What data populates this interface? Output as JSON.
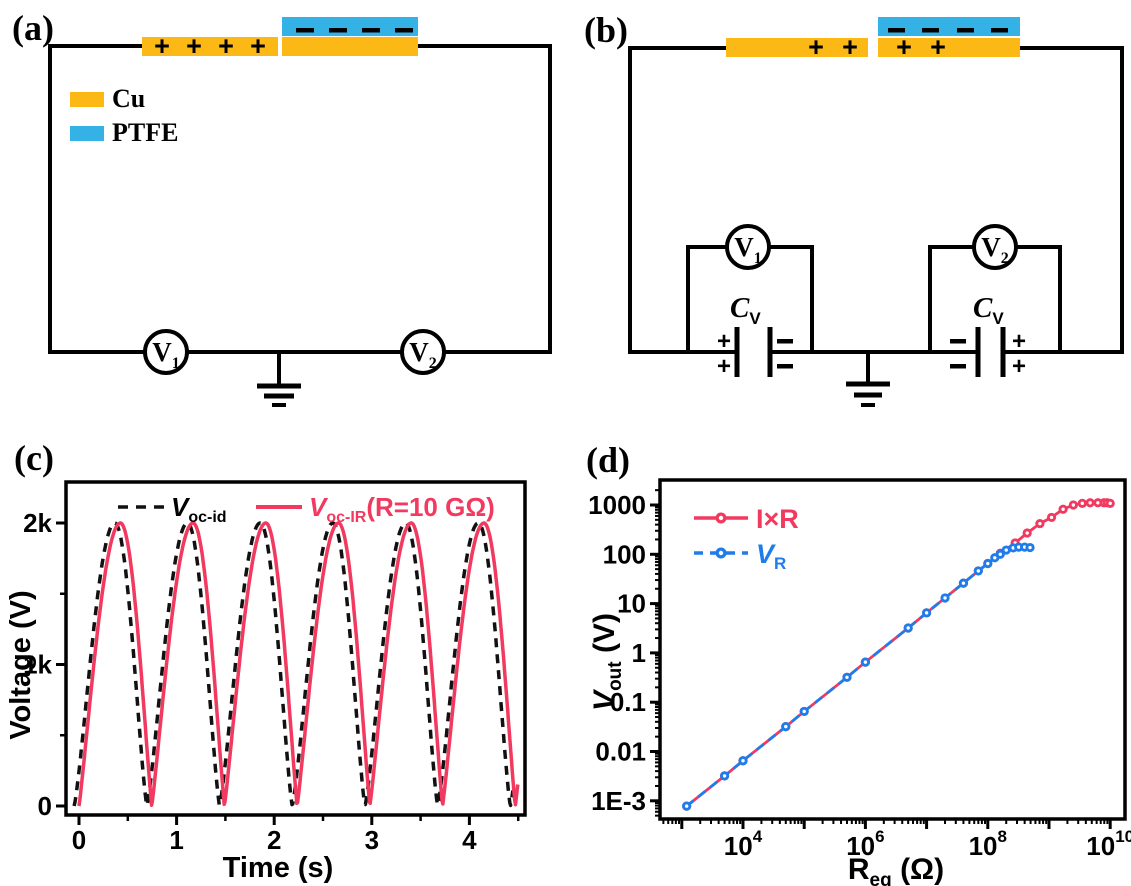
{
  "glyphs": {
    "plus": "+",
    "minus": "−"
  },
  "colors": {
    "cu": "#FCB814",
    "ptfe": "#35B2E5",
    "red": "#F2395F",
    "blue": "#1F7CEB",
    "black": "#111111"
  },
  "panels": {
    "a": {
      "label": "(a)",
      "legend": [
        {
          "name": "Cu"
        },
        {
          "name": "PTFE"
        }
      ],
      "meter1": {
        "main": "V",
        "sub": "1"
      },
      "meter2": {
        "main": "V",
        "sub": "2"
      }
    },
    "b": {
      "label": "(b)",
      "meter1": {
        "main": "V",
        "sub": "1"
      },
      "meter2": {
        "main": "V",
        "sub": "2"
      },
      "cap1": {
        "main": "C",
        "sub": "V"
      },
      "cap2": {
        "main": "C",
        "sub": "V"
      }
    },
    "c": {
      "label": "(c)"
    },
    "d": {
      "label": "(d)"
    }
  },
  "chart_data": [
    {
      "id": "c",
      "type": "line",
      "xlabel": "Time (s)",
      "ylabel": "Voltage (V)",
      "xlim": [
        -0.14,
        4.57
      ],
      "ylim": [
        0,
        2360
      ],
      "xticks": [
        0,
        1,
        2,
        3,
        4
      ],
      "xminor": [
        0.5,
        1.5,
        2.5,
        3.5,
        4.5
      ],
      "yticks": [
        {
          "value": 0,
          "label": "0"
        },
        {
          "value": 1000,
          "label": "1k"
        },
        {
          "value": 2000,
          "label": "2k"
        }
      ],
      "yminor": [
        500,
        1500
      ],
      "grid": false,
      "legend_position": "top-inside",
      "legend": [
        {
          "label_main": "V",
          "label_sub": "oc-id",
          "label_suffix": ""
        },
        {
          "label_main": "V",
          "label_sub": "oc-IR",
          "label_suffix": "(R=10 GΩ)"
        }
      ],
      "series": [
        {
          "name": "Voc-id",
          "color": "#111111",
          "dashed": true,
          "waveform": {
            "amplitude": 2000,
            "period": 0.745,
            "first_zero": -0.05,
            "peak_fraction": 0.56,
            "sharpness": 1.25,
            "t_start": -0.05,
            "t_end": 4.45
          },
          "peak_value": 2000,
          "peak_times": [
            0.37,
            1.11,
            1.86,
            2.6,
            3.35,
            4.09
          ],
          "zero_times": [
            -0.05,
            0.7,
            1.44,
            2.19,
            2.93,
            3.68,
            4.42
          ]
        },
        {
          "name": "Voc-IR (R=10 GΩ)",
          "color": "#F2395F",
          "dashed": false,
          "waveform": {
            "amplitude": 2000,
            "period": 0.745,
            "first_zero": 0,
            "peak_fraction": 0.57,
            "sharpness": 1.1,
            "t_start": 0,
            "t_end": 4.5
          },
          "peak_value": 2000,
          "peak_times": [
            0.42,
            1.17,
            1.91,
            2.66,
            3.4,
            4.15
          ],
          "zero_times": [
            0,
            0.75,
            1.49,
            2.24,
            2.98,
            3.73,
            4.47
          ]
        }
      ]
    },
    {
      "id": "d",
      "type": "scatter-line",
      "xscale": "log",
      "yscale": "log",
      "xlabel_main": "R",
      "xlabel_sub": "eq",
      "xlabel_suffix": " (Ω)",
      "ylabel_main": "V",
      "ylabel_sub": "out",
      "ylabel_suffix": " (V)",
      "xlim_log": [
        2.62,
        10.28
      ],
      "ylim_log": [
        -3.37,
        3.5
      ],
      "xticks": [
        {
          "base": "10",
          "exp": "4"
        },
        {
          "base": "10",
          "exp": "6"
        },
        {
          "base": "10",
          "exp": "8"
        },
        {
          "base": "10",
          "exp": "10"
        }
      ],
      "yticks": [
        {
          "value": 1000,
          "label": "1000"
        },
        {
          "value": 100,
          "label": "100"
        },
        {
          "value": 10,
          "label": "10"
        },
        {
          "value": 1,
          "label": "1"
        },
        {
          "value": 0.1,
          "label": "0.1"
        },
        {
          "value": 0.01,
          "label": "0.01"
        },
        {
          "value": 0.001,
          "label": "1E-3"
        }
      ],
      "grid": false,
      "legend_position": "top-left-inside",
      "legend": [
        {
          "label": "I×R"
        },
        {
          "label_main": "V",
          "label_sub": "R"
        }
      ],
      "series": [
        {
          "name": "I×R",
          "color": "#F2395F",
          "dashed": false,
          "marker": "circle",
          "points": [
            [
              1200,
              0.00078
            ],
            [
              5000,
              0.0032
            ],
            [
              10000,
              0.0065
            ],
            [
              50000,
              0.032
            ],
            [
              100000,
              0.065
            ],
            [
              500000,
              0.32
            ],
            [
              1000000,
              0.65
            ],
            [
              5000000,
              3.2
            ],
            [
              10000000,
              6.5
            ],
            [
              40000000,
              26
            ],
            [
              70000000,
              46
            ],
            [
              100000000,
              65
            ],
            [
              160000000,
              105
            ],
            [
              280000000,
              170
            ],
            [
              440000000,
              270
            ],
            [
              710000000,
              420
            ],
            [
              1100000000,
              560
            ],
            [
              1700000000,
              820
            ],
            [
              2500000000,
              1000
            ],
            [
              3500000000,
              1080
            ],
            [
              4700000000,
              1110
            ],
            [
              6300000000,
              1110
            ],
            [
              7900000000,
              1110
            ],
            [
              8900000000,
              1110
            ],
            [
              10000000000,
              1080
            ]
          ]
        },
        {
          "name": "VR",
          "color": "#1F7CEB",
          "dashed": true,
          "marker": "circle",
          "points": [
            [
              1200,
              0.00078
            ],
            [
              5000,
              0.0032
            ],
            [
              10000,
              0.0065
            ],
            [
              50000,
              0.032
            ],
            [
              100000,
              0.065
            ],
            [
              500000,
              0.32
            ],
            [
              1000000,
              0.65
            ],
            [
              5000000,
              3.2
            ],
            [
              10000000,
              6.5
            ],
            [
              20000000,
              13
            ],
            [
              40000000,
              26
            ],
            [
              70000000,
              46
            ],
            [
              100000000,
              65
            ],
            [
              130000000,
              85
            ],
            [
              160000000,
              100
            ],
            [
              200000000,
              122
            ],
            [
              260000000,
              135
            ],
            [
              320000000,
              140
            ],
            [
              400000000,
              140
            ],
            [
              490000000,
              137
            ]
          ]
        }
      ]
    }
  ]
}
